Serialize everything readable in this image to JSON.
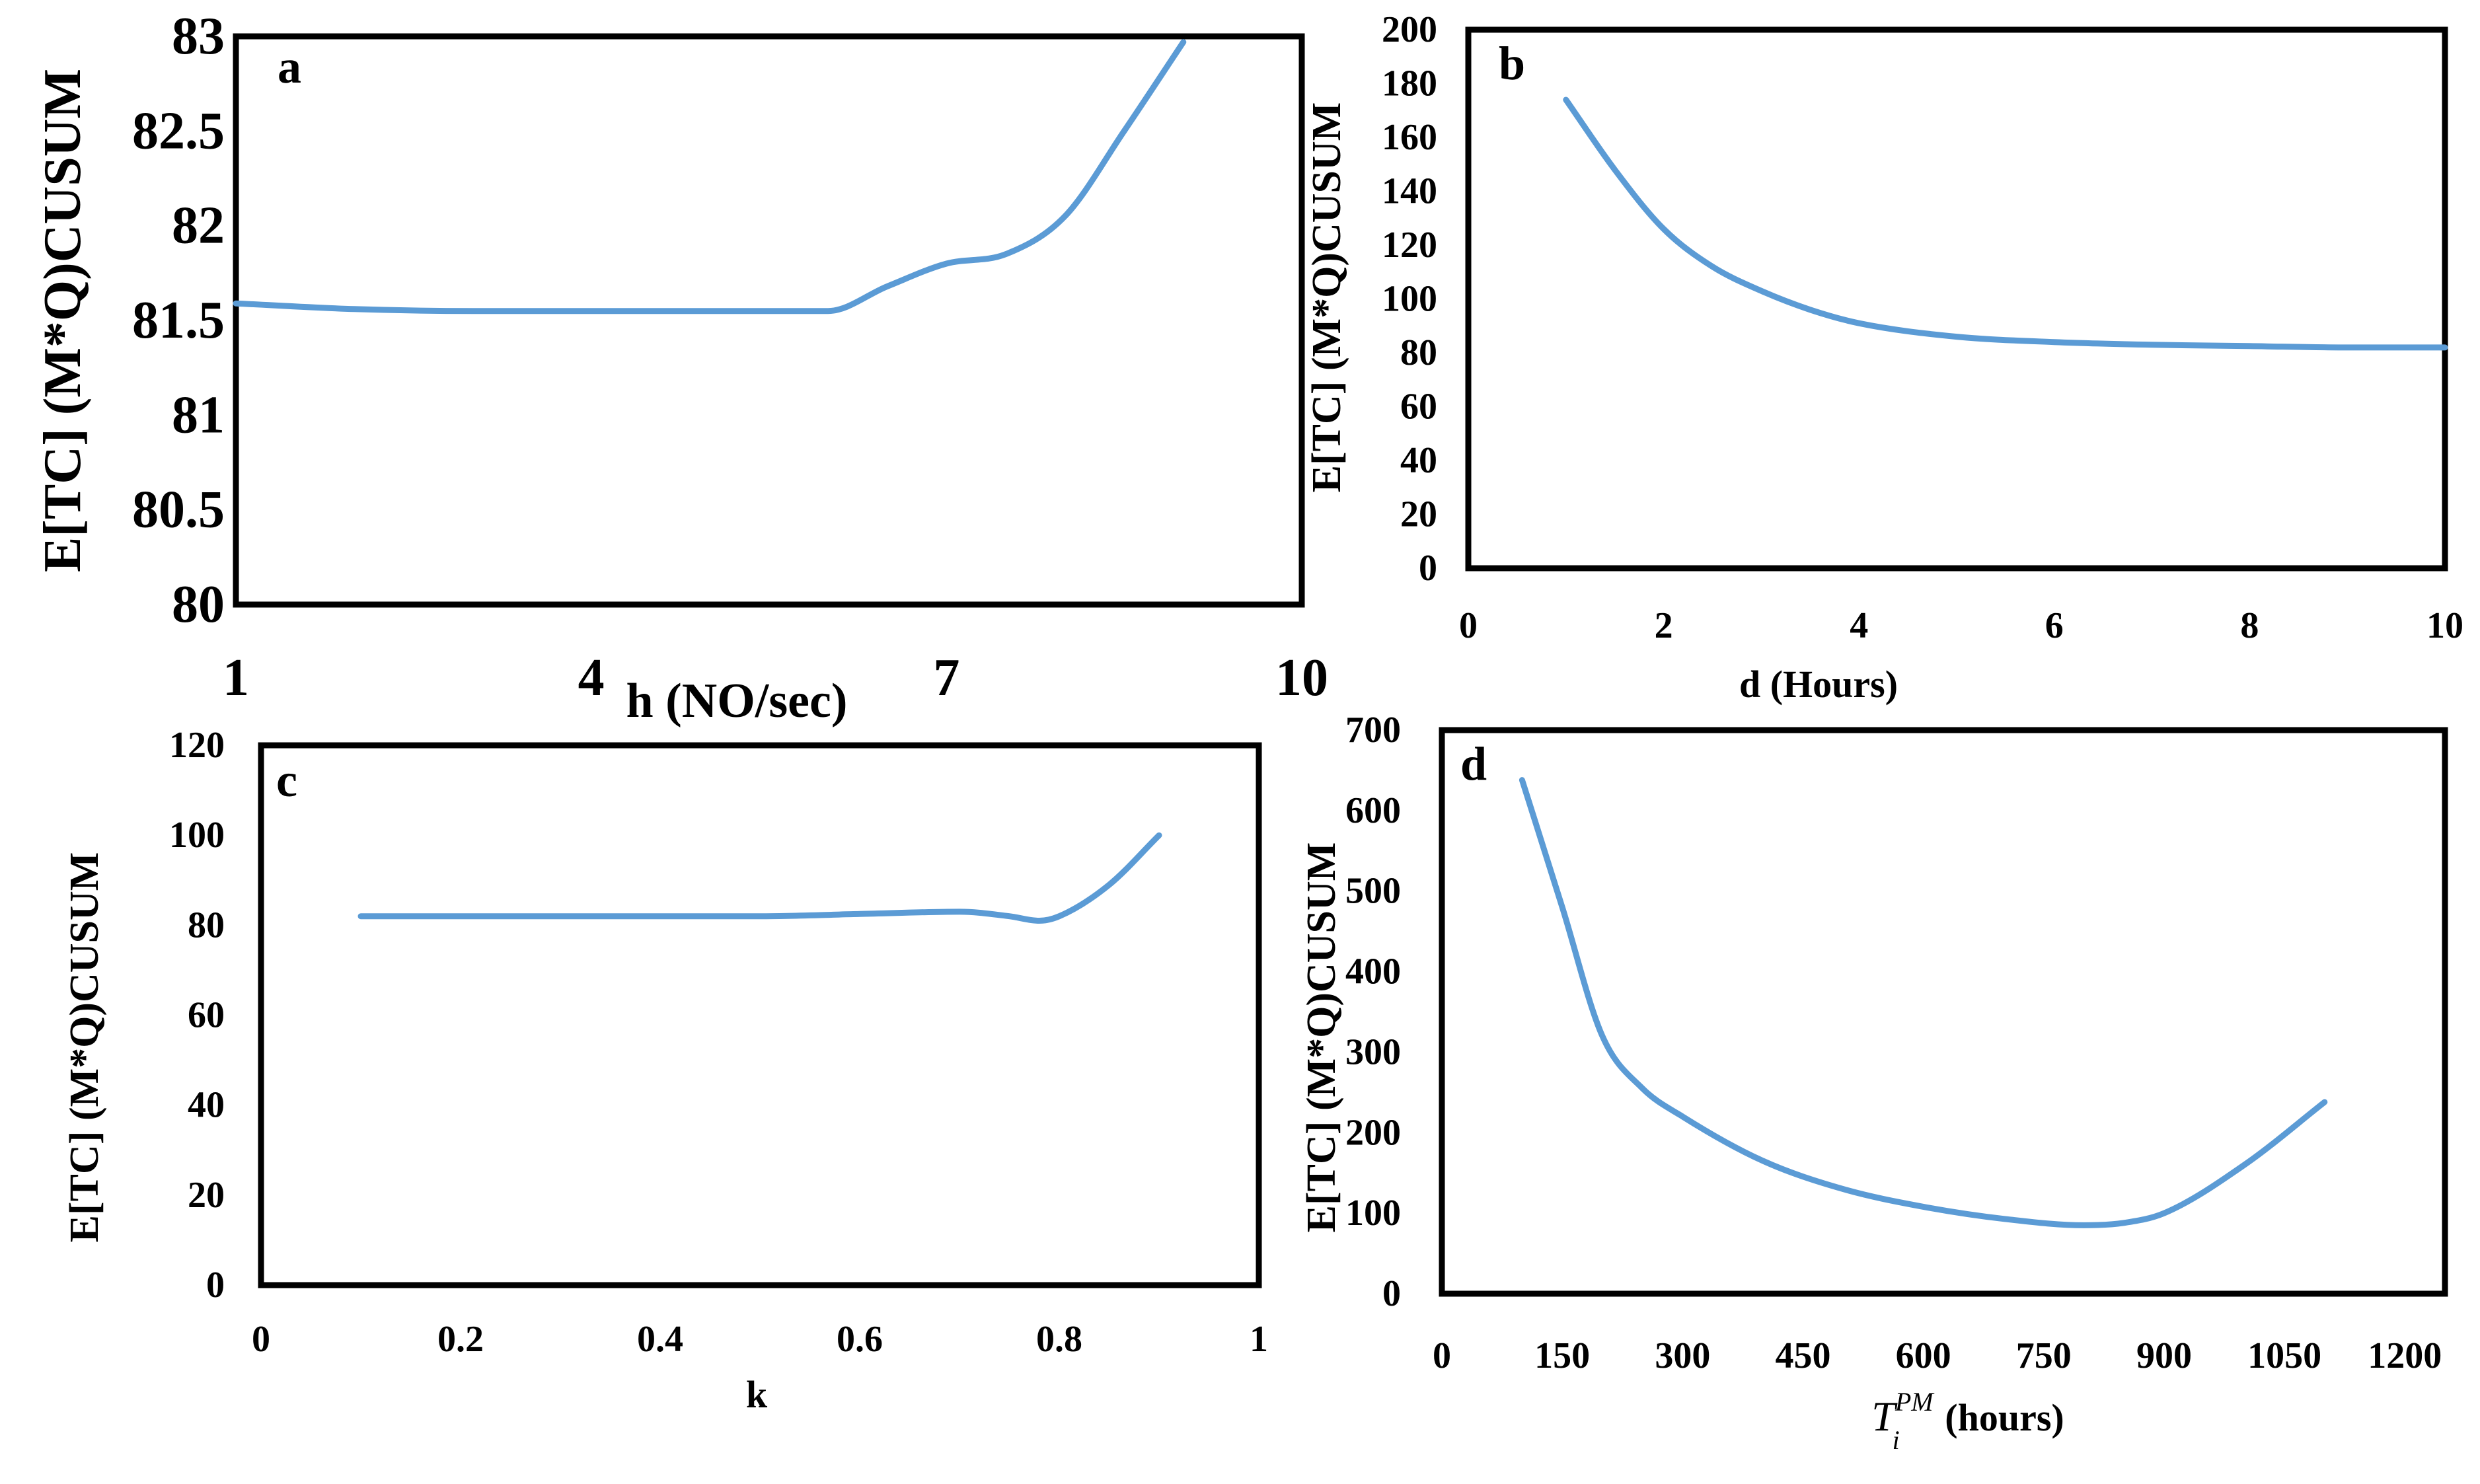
{
  "colors": {
    "line": "#5b9bd5",
    "frame": "#000000"
  },
  "chart_data": [
    {
      "panel": "a",
      "type": "line",
      "xlabel": "h (NO/sec)",
      "ylabel": "E[TC]  (M*Q)CUSUM",
      "xlim": [
        1,
        10
      ],
      "ylim": [
        80,
        83
      ],
      "xticks": [
        1,
        4,
        7,
        10
      ],
      "xtick_labels": [
        "1",
        "4",
        "7",
        "10"
      ],
      "yticks": [
        80,
        80.5,
        81,
        81.5,
        82,
        82.5,
        83
      ],
      "ytick_labels": [
        "80",
        "80.5",
        "81",
        "81.5",
        "82",
        "82.5",
        "83"
      ],
      "x": [
        1,
        2,
        3,
        4,
        5,
        6,
        6.5,
        7,
        7.5,
        8,
        8.5,
        9
      ],
      "y": [
        81.59,
        81.56,
        81.55,
        81.55,
        81.55,
        81.55,
        81.68,
        81.8,
        81.85,
        82.05,
        82.5,
        82.97
      ]
    },
    {
      "panel": "b",
      "type": "line",
      "xlabel": "d (Hours)",
      "ylabel": "E[TC]  (M*Q)CUSUM",
      "xlim": [
        0,
        10
      ],
      "ylim": [
        0,
        200
      ],
      "xticks": [
        0,
        2,
        4,
        6,
        8,
        10
      ],
      "xtick_labels": [
        "0",
        "2",
        "4",
        "6",
        "8",
        "10"
      ],
      "yticks": [
        0,
        20,
        40,
        60,
        80,
        100,
        120,
        140,
        160,
        180,
        200
      ],
      "ytick_labels": [
        "0",
        "20",
        "40",
        "60",
        "80",
        "100",
        "120",
        "140",
        "160",
        "180",
        "200"
      ],
      "x": [
        1,
        1.5,
        2,
        2.5,
        3,
        3.5,
        4,
        5,
        6,
        7,
        8,
        9,
        10
      ],
      "y": [
        174,
        148,
        126,
        112,
        103,
        96,
        91,
        86,
        84,
        83,
        82.5,
        82,
        82
      ]
    },
    {
      "panel": "c",
      "type": "line",
      "xlabel": "k",
      "ylabel": "E[TC]  (M*Q)CUSUM",
      "xlim": [
        0,
        1
      ],
      "ylim": [
        0,
        120
      ],
      "xticks": [
        0,
        0.2,
        0.4,
        0.6,
        0.8,
        1
      ],
      "xtick_labels": [
        "0",
        "0.2",
        "0.4",
        "0.6",
        "0.8",
        "1"
      ],
      "yticks": [
        0,
        20,
        40,
        60,
        80,
        100,
        120
      ],
      "ytick_labels": [
        "0",
        "20",
        "40",
        "60",
        "80",
        "100",
        "120"
      ],
      "x": [
        0.1,
        0.2,
        0.3,
        0.4,
        0.5,
        0.6,
        0.7,
        0.75,
        0.78,
        0.8,
        0.85,
        0.9
      ],
      "y": [
        82,
        82,
        82,
        82,
        82,
        82.5,
        83,
        82,
        81,
        82,
        89,
        100
      ]
    },
    {
      "panel": "d",
      "type": "line",
      "xlabel": "(hours)",
      "xlabel_math": {
        "base": "T",
        "sub": "i",
        "sup": "PM"
      },
      "ylabel": "E[TC]  (M*Q)CUSUM",
      "xlim": [
        0,
        1250
      ],
      "ylim": [
        0,
        700
      ],
      "xticks": [
        0,
        150,
        300,
        450,
        600,
        750,
        900,
        1050,
        1200
      ],
      "xtick_labels": [
        "0",
        "150",
        "300",
        "450",
        "600",
        "750",
        "900",
        "1050",
        "1200"
      ],
      "yticks": [
        0,
        100,
        200,
        300,
        400,
        500,
        600,
        700
      ],
      "ytick_labels": [
        "0",
        "100",
        "200",
        "300",
        "400",
        "500",
        "600",
        "700"
      ],
      "x": [
        100,
        150,
        200,
        250,
        300,
        400,
        500,
        600,
        700,
        800,
        850,
        900,
        1000,
        1100
      ],
      "y": [
        638,
        480,
        320,
        255,
        220,
        165,
        130,
        108,
        93,
        85,
        88,
        100,
        160,
        238
      ]
    }
  ]
}
